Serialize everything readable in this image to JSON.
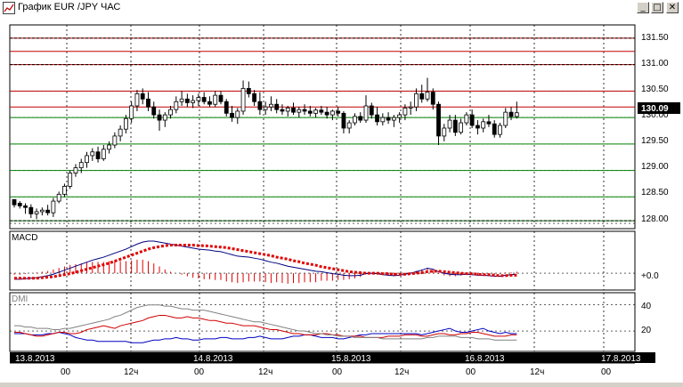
{
  "window": {
    "title": "График EUR /JPY ЧАС",
    "buttons": {
      "minimize": "_",
      "maximize": "□",
      "close": "✕"
    }
  },
  "price_panel": {
    "last_price": "130.09",
    "y_ticks": [
      "131.50",
      "131.00",
      "130.50",
      "130.00",
      "129.50",
      "129.00",
      "128.50",
      "128.00"
    ]
  },
  "macd_panel": {
    "label": "MACD",
    "zero_label": "+0.0"
  },
  "dmi_panel": {
    "label": "DMI",
    "ticks": [
      "40",
      "20"
    ]
  },
  "time_axis": {
    "dates": [
      "13.8.2013",
      "14.8.2013",
      "15.8.2013",
      "16.8.2013",
      "17.8.2013"
    ],
    "hour_labels": [
      "00",
      "12ч",
      "00",
      "12ч",
      "00",
      "12ч",
      "00",
      "12ч",
      "00"
    ]
  },
  "colors": {
    "resistance": "#c00000",
    "support": "#008000",
    "macd_signal": "#e00000",
    "macd_line": "#000080",
    "dmi_plus": "#0000c0",
    "dmi_minus": "#d00000",
    "adx": "#808080",
    "candle": "#000000"
  },
  "chart_data": [
    {
      "type": "candlestick",
      "panel": "price",
      "ylim": [
        127.9,
        131.75
      ],
      "ohlc": [
        [
          128.45,
          128.45,
          128.3,
          128.35
        ],
        [
          128.38,
          128.42,
          128.28,
          128.33
        ],
        [
          128.33,
          128.38,
          128.18,
          128.3
        ],
        [
          128.3,
          128.36,
          128.1,
          128.18
        ],
        [
          128.18,
          128.28,
          128.08,
          128.22
        ],
        [
          128.22,
          128.3,
          128.15,
          128.25
        ],
        [
          128.25,
          128.35,
          128.15,
          128.2
        ],
        [
          128.2,
          128.48,
          128.12,
          128.42
        ],
        [
          128.42,
          128.6,
          128.38,
          128.55
        ],
        [
          128.55,
          128.75,
          128.5,
          128.7
        ],
        [
          128.7,
          129.0,
          128.65,
          128.95
        ],
        [
          128.95,
          129.12,
          128.88,
          129.05
        ],
        [
          129.05,
          129.22,
          128.95,
          129.15
        ],
        [
          129.15,
          129.35,
          129.05,
          129.28
        ],
        [
          129.28,
          129.42,
          129.18,
          129.35
        ],
        [
          129.35,
          129.45,
          129.15,
          129.22
        ],
        [
          129.22,
          129.48,
          129.18,
          129.4
        ],
        [
          129.4,
          129.55,
          129.32,
          129.48
        ],
        [
          129.48,
          129.72,
          129.42,
          129.65
        ],
        [
          129.65,
          129.85,
          129.55,
          129.78
        ],
        [
          129.78,
          130.05,
          129.7,
          129.98
        ],
        [
          129.98,
          130.3,
          129.9,
          130.22
        ],
        [
          130.22,
          130.52,
          130.12,
          130.45
        ],
        [
          130.45,
          130.55,
          130.25,
          130.35
        ],
        [
          130.35,
          130.48,
          130.12,
          130.2
        ],
        [
          130.2,
          130.3,
          129.98,
          130.05
        ],
        [
          130.05,
          130.15,
          129.75,
          129.95
        ],
        [
          129.95,
          130.1,
          129.82,
          130.05
        ],
        [
          130.05,
          130.22,
          129.98,
          130.15
        ],
        [
          130.15,
          130.4,
          130.08,
          130.3
        ],
        [
          130.3,
          130.5,
          130.22,
          130.35
        ],
        [
          130.35,
          130.45,
          130.2,
          130.28
        ],
        [
          130.28,
          130.42,
          130.18,
          130.32
        ],
        [
          130.32,
          130.45,
          130.22,
          130.38
        ],
        [
          130.38,
          130.48,
          130.25,
          130.3
        ],
        [
          130.3,
          130.4,
          130.2,
          130.25
        ],
        [
          130.25,
          130.5,
          130.2,
          130.42
        ],
        [
          130.42,
          130.5,
          130.25,
          130.3
        ],
        [
          130.3,
          130.35,
          130.02,
          130.08
        ],
        [
          130.08,
          130.22,
          129.92,
          130.0
        ],
        [
          130.0,
          130.18,
          129.88,
          130.12
        ],
        [
          130.12,
          130.7,
          130.05,
          130.55
        ],
        [
          130.55,
          130.68,
          130.38,
          130.45
        ],
        [
          130.45,
          130.52,
          130.22,
          130.3
        ],
        [
          130.3,
          130.48,
          130.05,
          130.15
        ],
        [
          130.15,
          130.3,
          130.05,
          130.2
        ],
        [
          130.2,
          130.4,
          130.12,
          130.25
        ],
        [
          130.25,
          130.35,
          130.08,
          130.15
        ],
        [
          130.15,
          130.25,
          130.05,
          130.12
        ],
        [
          130.12,
          130.22,
          130.02,
          130.18
        ],
        [
          130.18,
          130.28,
          130.05,
          130.1
        ],
        [
          130.1,
          130.2,
          130.0,
          130.15
        ],
        [
          130.15,
          130.25,
          130.05,
          130.12
        ],
        [
          130.12,
          130.22,
          130.02,
          130.08
        ],
        [
          130.08,
          130.18,
          130.0,
          130.14
        ],
        [
          130.14,
          130.22,
          130.05,
          130.1
        ],
        [
          130.1,
          130.2,
          129.98,
          130.05
        ],
        [
          130.05,
          130.15,
          129.95,
          130.12
        ],
        [
          130.12,
          130.2,
          130.02,
          130.08
        ],
        [
          130.08,
          130.12,
          129.7,
          129.8
        ],
        [
          129.8,
          129.95,
          129.7,
          129.9
        ],
        [
          129.9,
          130.08,
          129.85,
          130.02
        ],
        [
          130.02,
          130.1,
          129.9,
          129.95
        ],
        [
          129.95,
          130.42,
          129.9,
          130.22
        ],
        [
          130.22,
          130.28,
          129.98,
          130.05
        ],
        [
          130.05,
          130.2,
          129.85,
          129.92
        ],
        [
          129.92,
          130.08,
          129.85,
          130.0
        ],
        [
          130.0,
          130.1,
          129.88,
          129.95
        ],
        [
          129.95,
          130.05,
          129.82,
          130.0
        ],
        [
          130.0,
          130.1,
          129.9,
          130.05
        ],
        [
          130.05,
          130.25,
          129.95,
          130.18
        ],
        [
          130.18,
          130.3,
          130.05,
          130.2
        ],
        [
          130.2,
          130.55,
          130.12,
          130.45
        ],
        [
          130.45,
          130.62,
          130.28,
          130.35
        ],
        [
          130.35,
          130.75,
          130.3,
          130.48
        ],
        [
          130.48,
          130.55,
          130.15,
          130.25
        ],
        [
          130.25,
          130.3,
          129.48,
          129.65
        ],
        [
          129.65,
          129.88,
          129.55,
          129.8
        ],
        [
          129.8,
          130.05,
          129.72,
          129.95
        ],
        [
          129.95,
          130.05,
          129.65,
          129.72
        ],
        [
          129.72,
          129.98,
          129.68,
          129.9
        ],
        [
          129.9,
          130.1,
          129.85,
          130.05
        ],
        [
          130.05,
          130.15,
          129.8,
          129.85
        ],
        [
          129.85,
          129.95,
          129.68,
          129.8
        ],
        [
          129.8,
          129.98,
          129.72,
          129.92
        ],
        [
          129.92,
          130.05,
          129.82,
          129.88
        ],
        [
          129.88,
          129.95,
          129.62,
          129.68
        ],
        [
          129.68,
          129.9,
          129.62,
          129.85
        ],
        [
          129.85,
          130.18,
          129.8,
          130.1
        ],
        [
          130.1,
          130.2,
          129.95,
          130.02
        ],
        [
          130.02,
          130.3,
          129.98,
          130.09
        ]
      ],
      "levels_resistance": [
        131.5,
        131.25,
        131.0,
        130.5,
        130.2
      ],
      "levels_support": [
        130.0,
        129.5,
        129.0,
        128.5,
        128.05
      ],
      "levels_dashed": [
        131.5,
        131.0,
        128.05
      ]
    },
    {
      "type": "line",
      "panel": "macd",
      "ylim": [
        -0.3,
        0.8
      ],
      "series": [
        {
          "name": "MACD",
          "values": [
            -0.12,
            -0.12,
            -0.11,
            -0.1,
            -0.09,
            -0.07,
            -0.05,
            -0.02,
            0.02,
            0.06,
            0.1,
            0.14,
            0.18,
            0.22,
            0.26,
            0.29,
            0.32,
            0.36,
            0.4,
            0.44,
            0.48,
            0.53,
            0.58,
            0.62,
            0.64,
            0.64,
            0.62,
            0.6,
            0.58,
            0.56,
            0.54,
            0.52,
            0.5,
            0.48,
            0.47,
            0.46,
            0.44,
            0.43,
            0.4,
            0.37,
            0.34,
            0.33,
            0.32,
            0.3,
            0.28,
            0.25,
            0.22,
            0.2,
            0.17,
            0.14,
            0.12,
            0.1,
            0.08,
            0.06,
            0.04,
            0.03,
            0.01,
            -0.01,
            -0.02,
            -0.04,
            -0.05,
            -0.05,
            -0.04,
            -0.01,
            0.0,
            -0.01,
            -0.03,
            -0.04,
            -0.05,
            -0.04,
            -0.02,
            0.0,
            0.03,
            0.06,
            0.1,
            0.08,
            0.03,
            0.0,
            -0.02,
            -0.03,
            -0.03,
            -0.02,
            -0.03,
            -0.04,
            -0.04,
            -0.05,
            -0.06,
            -0.06,
            -0.04,
            -0.03,
            -0.02
          ]
        },
        {
          "name": "Signal",
          "values": [
            -0.1,
            -0.1,
            -0.1,
            -0.1,
            -0.1,
            -0.09,
            -0.08,
            -0.07,
            -0.05,
            -0.03,
            -0.01,
            0.02,
            0.05,
            0.08,
            0.11,
            0.14,
            0.17,
            0.2,
            0.24,
            0.28,
            0.32,
            0.36,
            0.4,
            0.44,
            0.48,
            0.51,
            0.53,
            0.55,
            0.56,
            0.56,
            0.56,
            0.56,
            0.56,
            0.55,
            0.55,
            0.54,
            0.53,
            0.52,
            0.51,
            0.49,
            0.47,
            0.45,
            0.43,
            0.41,
            0.39,
            0.37,
            0.35,
            0.32,
            0.3,
            0.28,
            0.25,
            0.23,
            0.2,
            0.18,
            0.16,
            0.13,
            0.11,
            0.09,
            0.07,
            0.05,
            0.03,
            0.02,
            0.01,
            0.0,
            0.0,
            0.0,
            -0.01,
            -0.01,
            -0.02,
            -0.02,
            -0.02,
            -0.01,
            0.0,
            0.01,
            0.03,
            0.04,
            0.04,
            0.03,
            0.02,
            0.01,
            0.0,
            -0.01,
            -0.01,
            -0.02,
            -0.03,
            -0.03,
            -0.04,
            -0.05,
            -0.05,
            -0.04,
            -0.04
          ]
        }
      ]
    },
    {
      "type": "line",
      "panel": "dmi",
      "ylim": [
        5,
        48
      ],
      "series": [
        {
          "name": "+DI",
          "values": [
            18,
            18,
            18,
            17,
            17,
            17,
            18,
            18,
            19,
            18,
            17,
            15,
            14,
            13,
            13,
            12,
            12,
            12,
            12,
            12,
            12,
            11,
            11,
            11,
            12,
            13,
            13,
            14,
            14,
            15,
            14,
            14,
            13,
            13,
            14,
            14,
            14,
            15,
            15,
            14,
            14,
            14,
            15,
            15,
            16,
            15,
            14,
            14,
            14,
            15,
            16,
            16,
            17,
            17,
            16,
            15,
            15,
            15,
            14,
            14,
            15,
            16,
            17,
            17,
            18,
            18,
            18,
            18,
            18,
            18,
            18,
            18,
            18,
            17,
            18,
            19,
            20,
            21,
            22,
            20,
            19,
            19,
            20,
            21,
            22,
            20,
            19,
            18,
            19,
            18,
            18
          ]
        },
        {
          "name": "-DI",
          "values": [
            19,
            19,
            18,
            17,
            16,
            16,
            17,
            18,
            19,
            19,
            18,
            18,
            19,
            21,
            22,
            23,
            24,
            23,
            22,
            24,
            25,
            26,
            27,
            28,
            30,
            31,
            32,
            32,
            31,
            30,
            30,
            31,
            30,
            30,
            29,
            28,
            28,
            27,
            26,
            26,
            25,
            24,
            24,
            24,
            23,
            22,
            21,
            21,
            20,
            19,
            18,
            18,
            17,
            17,
            17,
            18,
            18,
            17,
            17,
            16,
            16,
            16,
            16,
            15,
            15,
            15,
            15,
            16,
            16,
            16,
            17,
            17,
            17,
            16,
            16,
            17,
            18,
            18,
            17,
            17,
            18,
            18,
            19,
            19,
            18,
            17,
            16,
            16,
            16,
            17,
            17
          ]
        },
        {
          "name": "ADX",
          "values": [
            24,
            24,
            23,
            23,
            22,
            22,
            22,
            21,
            21,
            22,
            22,
            23,
            24,
            25,
            26,
            27,
            28,
            29,
            31,
            32,
            34,
            36,
            38,
            39,
            40,
            40,
            40,
            39,
            39,
            38,
            37,
            37,
            36,
            36,
            36,
            35,
            34,
            33,
            32,
            31,
            30,
            29,
            28,
            27,
            27,
            26,
            25,
            24,
            23,
            22,
            21,
            20,
            20,
            19,
            18,
            18,
            17,
            17,
            16,
            16,
            16,
            15,
            15,
            15,
            15,
            15,
            14,
            14,
            14,
            14,
            14,
            14,
            14,
            14,
            15,
            15,
            16,
            16,
            16,
            16,
            15,
            15,
            15,
            14,
            14,
            14,
            13,
            13,
            13,
            13,
            13
          ]
        }
      ]
    }
  ]
}
